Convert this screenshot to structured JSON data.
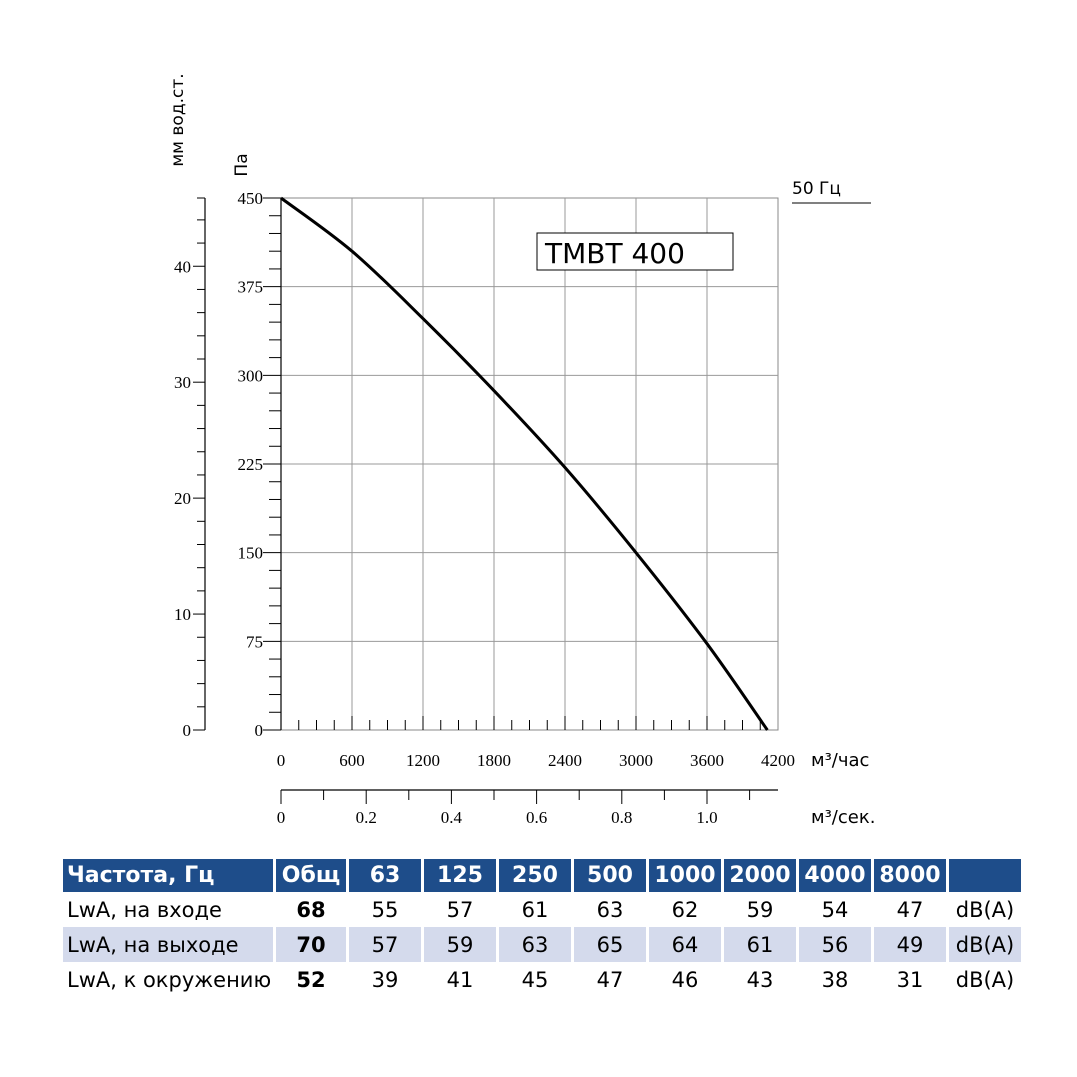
{
  "chart_data": {
    "type": "line",
    "title": "ТМВТ 400",
    "frequency_label": "50 Гц",
    "x_label": "м³/час",
    "x_label_alt": "м³/сек.",
    "y_label": "Па",
    "y_label_alt": "мм вод.ст.",
    "x_ticks": [
      0,
      600,
      1200,
      1800,
      2400,
      3000,
      3600,
      4200
    ],
    "x_alt_ticks": [
      "0",
      "0.2",
      "0.4",
      "0.6",
      "0.8",
      "1.0"
    ],
    "y_ticks": [
      0,
      75,
      150,
      225,
      300,
      375,
      450
    ],
    "y_alt_ticks": [
      0,
      10,
      20,
      30,
      40
    ],
    "xlim": [
      0,
      4200
    ],
    "ylim": [
      0,
      450
    ],
    "grid": true,
    "series": [
      {
        "name": "ТМВТ 400",
        "x": [
          0,
          600,
          1200,
          1800,
          2400,
          3000,
          3600,
          4110
        ],
        "y": [
          450,
          405,
          348,
          287,
          222,
          150,
          73,
          0
        ]
      }
    ]
  },
  "table": {
    "headers": [
      "Частота, Гц",
      "Общ",
      "63",
      "125",
      "250",
      "500",
      "1000",
      "2000",
      "4000",
      "8000",
      ""
    ],
    "rows": [
      {
        "label": "LwA, на входе",
        "total": "68",
        "values": [
          "55",
          "57",
          "61",
          "63",
          "62",
          "59",
          "54",
          "47"
        ],
        "unit": "dB(A)"
      },
      {
        "label": "LwA, на выходе",
        "total": "70",
        "values": [
          "57",
          "59",
          "63",
          "65",
          "64",
          "61",
          "56",
          "49"
        ],
        "unit": "dB(A)"
      },
      {
        "label": "LwA, к окружению",
        "total": "52",
        "values": [
          "39",
          "41",
          "45",
          "47",
          "46",
          "43",
          "38",
          "31"
        ],
        "unit": "dB(A)"
      }
    ]
  }
}
